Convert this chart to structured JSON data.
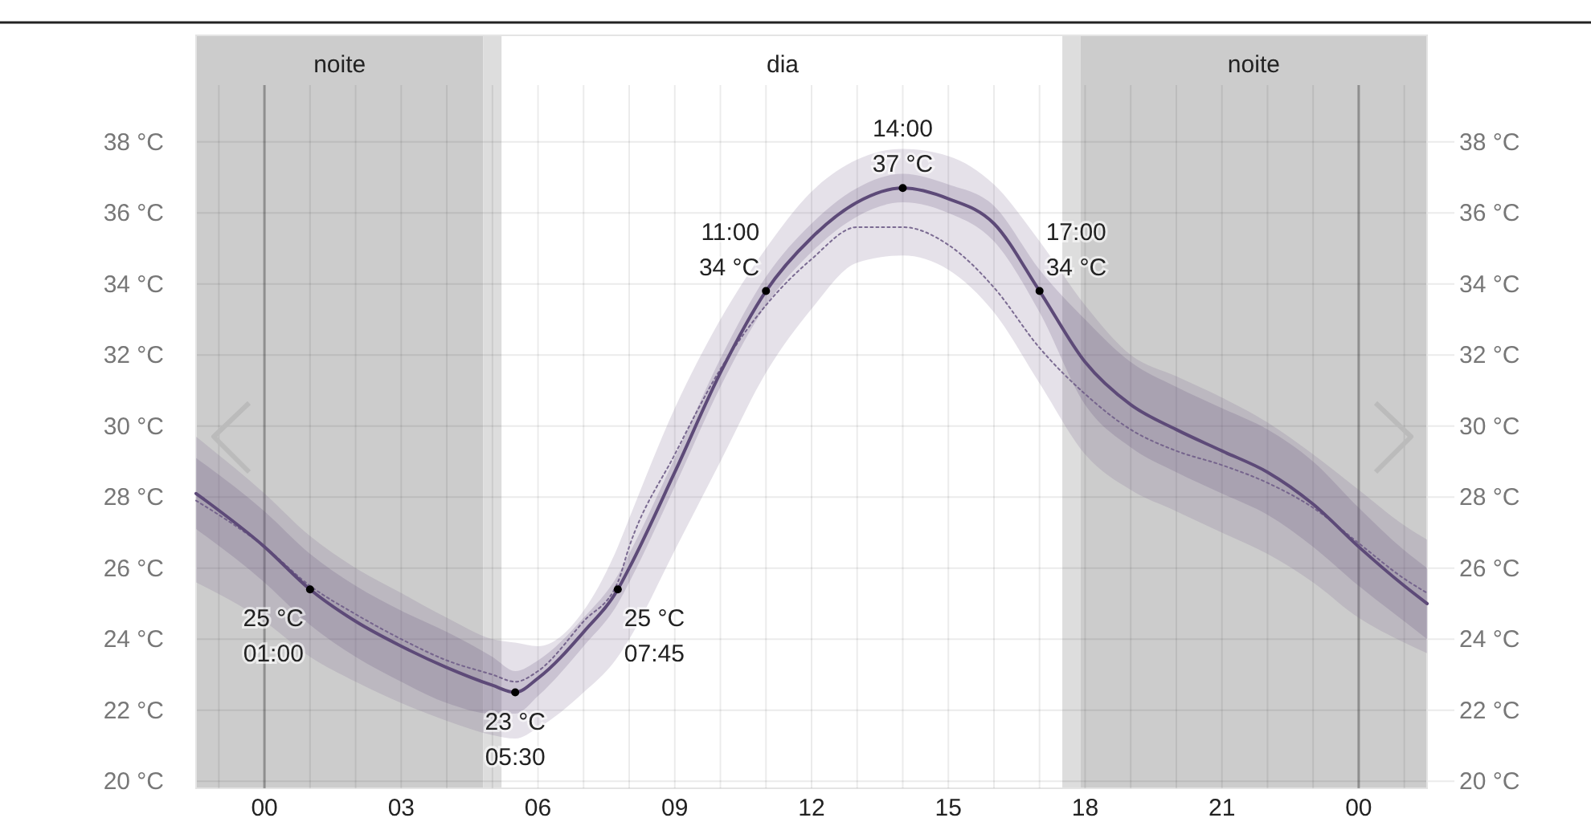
{
  "chart_data": {
    "type": "line",
    "xlim": [
      -1.5,
      25.5
    ],
    "xticks": [
      {
        "value": -1,
        "label": null
      },
      {
        "value": 0,
        "label": "00"
      },
      {
        "value": 1,
        "label": null
      },
      {
        "value": 2,
        "label": null
      },
      {
        "value": 3,
        "label": "03"
      },
      {
        "value": 4,
        "label": null
      },
      {
        "value": 5,
        "label": null
      },
      {
        "value": 6,
        "label": "06"
      },
      {
        "value": 7,
        "label": null
      },
      {
        "value": 8,
        "label": null
      },
      {
        "value": 9,
        "label": "09"
      },
      {
        "value": 10,
        "label": null
      },
      {
        "value": 11,
        "label": null
      },
      {
        "value": 12,
        "label": "12"
      },
      {
        "value": 13,
        "label": null
      },
      {
        "value": 14,
        "label": null
      },
      {
        "value": 15,
        "label": "15"
      },
      {
        "value": 16,
        "label": null
      },
      {
        "value": 17,
        "label": null
      },
      {
        "value": 18,
        "label": "18"
      },
      {
        "value": 19,
        "label": null
      },
      {
        "value": 20,
        "label": null
      },
      {
        "value": 21,
        "label": "21"
      },
      {
        "value": 22,
        "label": null
      },
      {
        "value": 23,
        "label": null
      },
      {
        "value": 24,
        "label": "00"
      },
      {
        "value": 25,
        "label": null
      }
    ],
    "ylim": [
      19.8,
      41
    ],
    "yticks": [
      {
        "value": 20,
        "label": "20 °C"
      },
      {
        "value": 22,
        "label": "22 °C"
      },
      {
        "value": 24,
        "label": "24 °C"
      },
      {
        "value": 26,
        "label": "26 °C"
      },
      {
        "value": 28,
        "label": "28 °C"
      },
      {
        "value": 30,
        "label": "30 °C"
      },
      {
        "value": 32,
        "label": "32 °C"
      },
      {
        "value": 34,
        "label": "34 °C"
      },
      {
        "value": 36,
        "label": "36 °C"
      },
      {
        "value": 38,
        "label": "38 °C"
      }
    ],
    "y2lim": [
      19.8,
      41
    ],
    "y2ticks": [
      {
        "value": 20,
        "label": "20 °C"
      },
      {
        "value": 22,
        "label": "22 °C"
      },
      {
        "value": 24,
        "label": "24 °C"
      },
      {
        "value": 26,
        "label": "26 °C"
      },
      {
        "value": 28,
        "label": "28 °C"
      },
      {
        "value": 30,
        "label": "30 °C"
      },
      {
        "value": 32,
        "label": "32 °C"
      },
      {
        "value": 34,
        "label": "34 °C"
      },
      {
        "value": 36,
        "label": "36 °C"
      },
      {
        "value": 38,
        "label": "38 °C"
      }
    ],
    "grid": true,
    "bands": [
      {
        "axis": "x",
        "from": -1.5,
        "to": 4.8,
        "label": "noite",
        "color": "#cccccc"
      },
      {
        "axis": "x",
        "from": 4.8,
        "to": 5.2,
        "color": "#dddddd"
      },
      {
        "axis": "x",
        "from": 17.5,
        "to": 17.9,
        "color": "#dddddd"
      },
      {
        "axis": "x",
        "from": 17.9,
        "to": 25.5,
        "label": "noite",
        "color": "#cccccc"
      }
    ],
    "series": [
      {
        "color": "#7b6b92",
        "line_style": "dotted",
        "x": [
          -1.5,
          0,
          1,
          2,
          3,
          4,
          5,
          5.5,
          6,
          7,
          7.75,
          8,
          9,
          10,
          11,
          12,
          13,
          14,
          15,
          16,
          17,
          18,
          19,
          20,
          21,
          22,
          23,
          24,
          25,
          25.5
        ],
        "values": [
          27.9,
          26.6,
          25.5,
          24.7,
          24.0,
          23.4,
          23.0,
          22.8,
          23.1,
          24.5,
          25.6,
          26.6,
          29.2,
          31.6,
          33.4,
          34.7,
          35.6,
          35.6,
          35.1,
          33.9,
          32.2,
          30.9,
          29.9,
          29.3,
          28.9,
          28.4,
          27.7,
          26.7,
          25.7,
          25.3
        ],
        "lower": [
          25.6,
          24.5,
          23.5,
          22.8,
          22.2,
          21.7,
          21.3,
          21.2,
          21.5,
          22.5,
          23.5,
          24.0,
          26.5,
          29.0,
          31.5,
          33.3,
          34.6,
          34.8,
          34.4,
          33.2,
          31.2,
          29.2,
          28.2,
          27.6,
          27.0,
          26.4,
          25.6,
          24.6,
          23.9,
          23.6
        ],
        "upper": [
          29.7,
          28.1,
          26.9,
          26.0,
          25.3,
          24.6,
          24.0,
          23.9,
          23.8,
          24.8,
          26.6,
          27.4,
          30.5,
          33.0,
          35.0,
          36.6,
          37.5,
          37.8,
          37.6,
          36.8,
          35.2,
          33.4,
          32.0,
          31.4,
          30.8,
          30.1,
          29.2,
          28.2,
          27.2,
          26.8
        ]
      },
      {
        "color": "#5d4a78",
        "line_style": "solid",
        "x": [
          -1.5,
          0,
          1,
          2,
          3,
          4,
          5,
          5.5,
          6,
          7,
          7.75,
          8,
          9,
          10,
          11,
          12,
          13,
          14,
          15,
          16,
          17,
          18,
          19,
          20,
          21,
          22,
          23,
          24,
          25,
          25.5
        ],
        "values": [
          28.1,
          26.6,
          25.4,
          24.5,
          23.8,
          23.2,
          22.7,
          22.5,
          22.9,
          24.2,
          25.4,
          26.0,
          28.7,
          31.5,
          33.8,
          35.3,
          36.3,
          36.7,
          36.4,
          35.7,
          33.8,
          31.8,
          30.6,
          29.9,
          29.3,
          28.7,
          27.8,
          26.6,
          25.5,
          25.0
        ],
        "lower": [
          27.1,
          25.6,
          24.4,
          23.5,
          22.8,
          22.2,
          21.9,
          21.9,
          22.4,
          23.8,
          25.0,
          25.6,
          28.3,
          31.1,
          33.4,
          34.9,
          35.9,
          36.3,
          36.0,
          35.2,
          33.2,
          30.6,
          29.4,
          28.7,
          28.1,
          27.5,
          26.6,
          25.5,
          24.5,
          24.0
        ],
        "upper": [
          29.1,
          27.6,
          26.4,
          25.5,
          24.8,
          24.2,
          23.5,
          23.1,
          23.4,
          24.6,
          25.8,
          26.4,
          29.1,
          31.9,
          34.2,
          35.7,
          36.7,
          37.1,
          36.8,
          36.2,
          34.4,
          33.0,
          31.8,
          31.1,
          30.5,
          29.9,
          29.0,
          27.7,
          26.5,
          26.0
        ]
      },
      {
        "type": "scatter",
        "color": "#000000",
        "marker": "circle",
        "x": [
          1,
          5.5,
          7.75,
          11,
          14,
          17
        ],
        "values": [
          25.4,
          22.5,
          25.4,
          33.8,
          36.7,
          33.8
        ]
      }
    ],
    "annotations": [
      "dia",
      {
        "text": "25 °C\n01:00",
        "x": 1,
        "y": 25.4
      },
      {
        "text": "23 °C\n05:30",
        "x": 5.5,
        "y": 22.5
      },
      {
        "text": "25 °C\n07:45",
        "x": 7.75,
        "y": 25.4
      },
      {
        "text": "11:00\n34 °C",
        "x": 11,
        "y": 33.8
      },
      {
        "text": "14:00\n37 °C",
        "x": 14,
        "y": 36.7
      },
      {
        "text": "17:00\n34 °C",
        "x": 17,
        "y": 33.8
      }
    ]
  }
}
